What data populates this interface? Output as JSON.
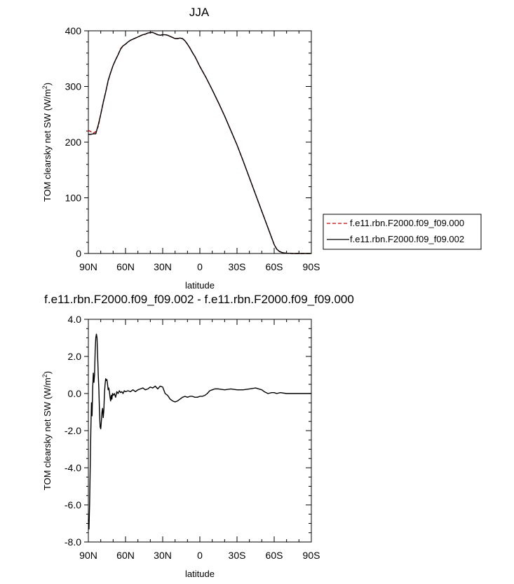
{
  "chart_data": [
    {
      "type": "line",
      "title": "JJA",
      "xlabel": "latitude",
      "ylabel": "TOM clearsky net SW (W/m",
      "ylabel_sup": "2",
      "ylabel_close": ")",
      "xlim": [
        90,
        -90
      ],
      "ylim": [
        0,
        400
      ],
      "x_ticks": [
        90,
        60,
        30,
        0,
        -30,
        -60,
        -90
      ],
      "x_tick_labels": [
        "90N",
        "60N",
        "30N",
        "0",
        "30S",
        "60S",
        "90S"
      ],
      "y_ticks": [
        0,
        100,
        200,
        300,
        400
      ],
      "y_tick_labels": [
        "0",
        "100",
        "200",
        "300",
        "400"
      ],
      "legend_position": "right",
      "series": [
        {
          "name": "f.e11.rbn.F2000.f09_f09.000",
          "color": "#cc0000",
          "style": "dashed",
          "x": [
            90,
            88,
            86,
            84,
            82,
            80,
            78,
            76,
            74,
            72,
            70,
            68,
            66,
            64,
            62,
            60,
            58,
            56,
            54,
            52,
            50,
            48,
            46,
            44,
            42,
            40,
            38,
            36,
            34,
            32,
            30,
            28,
            26,
            24,
            22,
            20,
            18,
            16,
            14,
            12,
            10,
            8,
            6,
            4,
            2,
            0,
            -5,
            -10,
            -15,
            -20,
            -25,
            -30,
            -35,
            -40,
            -45,
            -50,
            -55,
            -58,
            -60,
            -62,
            -64,
            -66,
            -68,
            -70,
            -75,
            -80,
            -85,
            -90
          ],
          "y": [
            221,
            219,
            216,
            219,
            228,
            250,
            272,
            290,
            310,
            325,
            338,
            348,
            357,
            368,
            373,
            376,
            380,
            383,
            385,
            387,
            389,
            391,
            393,
            394,
            396,
            397,
            397,
            395,
            393,
            392,
            393,
            393,
            392,
            390,
            388,
            386,
            386,
            387,
            386,
            382,
            376,
            369,
            361,
            354,
            345,
            336,
            316,
            294,
            271,
            247,
            221,
            195,
            166,
            136,
            106,
            76,
            46,
            28,
            16,
            8,
            4,
            2,
            1,
            0.5,
            0,
            0,
            0,
            0
          ]
        },
        {
          "name": "f.e11.rbn.F2000.f09_f09.002",
          "color": "#000000",
          "style": "solid",
          "x": [
            90,
            88,
            86,
            84,
            82,
            80,
            78,
            76,
            74,
            72,
            70,
            68,
            66,
            64,
            62,
            60,
            58,
            56,
            54,
            52,
            50,
            48,
            46,
            44,
            42,
            40,
            38,
            36,
            34,
            32,
            30,
            28,
            26,
            24,
            22,
            20,
            18,
            16,
            14,
            12,
            10,
            8,
            6,
            4,
            2,
            0,
            -5,
            -10,
            -15,
            -20,
            -25,
            -30,
            -35,
            -40,
            -45,
            -50,
            -55,
            -58,
            -60,
            -62,
            -64,
            -66,
            -68,
            -70,
            -75,
            -80,
            -85,
            -90
          ],
          "y": [
            214,
            214,
            215,
            215,
            231,
            250,
            271,
            290,
            311,
            325,
            338,
            348,
            357,
            367,
            373,
            376,
            380,
            383,
            385,
            387,
            389,
            391,
            393,
            394,
            396,
            397,
            397,
            395,
            393,
            392,
            393,
            393,
            392,
            390,
            388,
            386,
            386,
            387,
            386,
            382,
            376,
            369,
            361,
            354,
            345,
            336,
            316,
            294,
            271,
            247,
            221,
            195,
            166,
            136,
            106,
            76,
            46,
            28,
            16,
            8,
            4,
            2,
            1,
            0.5,
            0,
            0,
            0,
            0
          ]
        }
      ]
    },
    {
      "type": "line",
      "title": "f.e11.rbn.F2000.f09_f09.002 - f.e11.rbn.F2000.f09_f09.000",
      "xlabel": "latitude",
      "ylabel": "TOM clearsky net SW (W/m",
      "ylabel_sup": "2",
      "ylabel_close": ")",
      "xlim": [
        90,
        -90
      ],
      "ylim": [
        -8,
        4
      ],
      "x_ticks": [
        90,
        60,
        30,
        0,
        -30,
        -60,
        -90
      ],
      "x_tick_labels": [
        "90N",
        "60N",
        "30N",
        "0",
        "30S",
        "60S",
        "90S"
      ],
      "y_ticks": [
        4,
        2,
        0,
        -2,
        -4,
        -6,
        -8
      ],
      "y_tick_labels": [
        "4.0",
        "2.0",
        "0.0",
        "-2.0",
        "-4.0",
        "-6.0",
        "-8.0"
      ],
      "series": [
        {
          "name": "",
          "color": "#000000",
          "style": "solid",
          "x": [
            90,
            89.5,
            89,
            88.5,
            88,
            87.5,
            87,
            86.5,
            86,
            85.5,
            85,
            84.5,
            84,
            83.5,
            83,
            82.5,
            82,
            81.5,
            81,
            80.5,
            80,
            79.5,
            79,
            78.5,
            78,
            77.5,
            77,
            76.5,
            76,
            75.5,
            75,
            74.5,
            74,
            73.5,
            73,
            72.5,
            72,
            71.5,
            71,
            70.5,
            70,
            69,
            68,
            67,
            66,
            65,
            64,
            63,
            62,
            61,
            60,
            58,
            56,
            54,
            52,
            50,
            48,
            46,
            44,
            42,
            40,
            38,
            36,
            34,
            32,
            30,
            28,
            26,
            24,
            22,
            20,
            18,
            16,
            14,
            12,
            10,
            8,
            6,
            4,
            2,
            0,
            -2,
            -4,
            -6,
            -8,
            -10,
            -12,
            -15,
            -20,
            -25,
            -30,
            -35,
            -40,
            -45,
            -50,
            -52,
            -55,
            -58,
            -60,
            -62,
            -65,
            -70,
            -75,
            -80,
            -85,
            -90
          ],
          "y": [
            -6.8,
            -7.3,
            -6.0,
            -4.0,
            -2.0,
            -0.5,
            -1.2,
            0.3,
            1.1,
            0.6,
            1.0,
            2.3,
            3.0,
            3.2,
            3.0,
            2.0,
            1.0,
            0.2,
            -1.0,
            -1.8,
            -1.9,
            -1.5,
            -1.0,
            -0.8,
            -1.3,
            -0.9,
            0.0,
            0.5,
            0.8,
            0.7,
            0.75,
            0.5,
            0.2,
            0.3,
            0.1,
            -0.2,
            -0.4,
            -0.1,
            -0.3,
            0.0,
            -0.1,
            0.0,
            -0.2,
            0.1,
            0.0,
            0.15,
            0.05,
            0.1,
            0.0,
            0.15,
            0.1,
            0.15,
            0.1,
            0.2,
            0.1,
            0.2,
            0.25,
            0.3,
            0.2,
            0.25,
            0.35,
            0.3,
            0.4,
            0.25,
            0.4,
            0.35,
            0.0,
            -0.1,
            -0.3,
            -0.4,
            -0.45,
            -0.4,
            -0.3,
            -0.2,
            -0.15,
            -0.2,
            -0.15,
            -0.15,
            -0.2,
            -0.2,
            -0.15,
            -0.15,
            -0.1,
            0.0,
            0.15,
            0.2,
            0.25,
            0.25,
            0.2,
            0.25,
            0.2,
            0.2,
            0.25,
            0.3,
            0.2,
            0.1,
            0.0,
            0.05,
            0.05,
            0.0,
            0.05,
            0.0,
            0.0,
            0.0,
            0.0,
            0.0
          ]
        }
      ]
    }
  ]
}
